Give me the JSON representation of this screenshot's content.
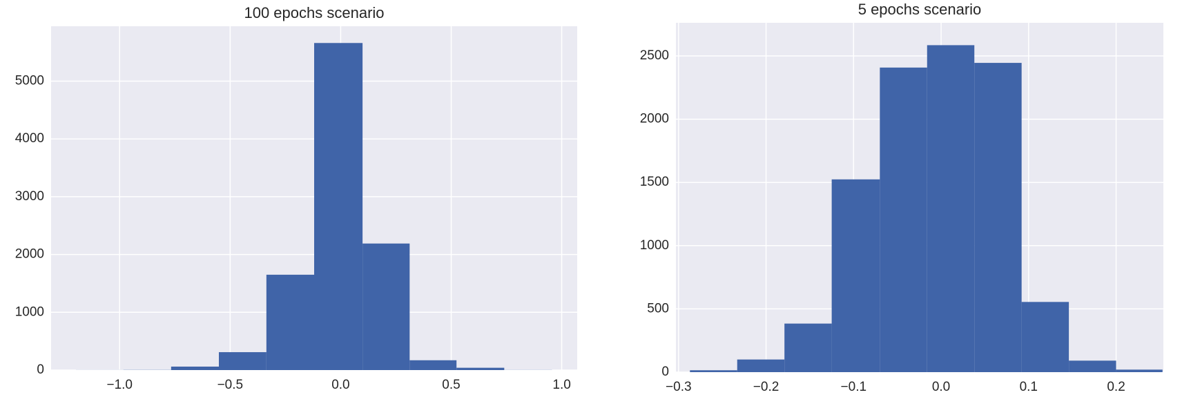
{
  "chart_data": [
    {
      "type": "histogram",
      "title": "100 epochs scenario",
      "color": "#4064a8",
      "grid": true,
      "bins": [
        -1.198,
        -0.983,
        -0.767,
        -0.551,
        -0.336,
        -0.12,
        0.099,
        0.312,
        0.524,
        0.74,
        0.956
      ],
      "values": [
        1,
        3,
        60,
        310,
        1650,
        5660,
        2190,
        170,
        40,
        2
      ],
      "xlim": [
        -1.31,
        1.07
      ],
      "ylim": [
        0,
        5950
      ],
      "xticks": [
        {
          "value": -1.0,
          "label": "−1.0"
        },
        {
          "value": -0.5,
          "label": "−0.5"
        },
        {
          "value": 0,
          "label": "0.0"
        },
        {
          "value": 0.5,
          "label": "0.5"
        },
        {
          "value": 1.0,
          "label": "1.0"
        }
      ],
      "yticks": [
        0,
        1000,
        2000,
        3000,
        4000,
        5000
      ]
    },
    {
      "type": "histogram",
      "title": "5 epochs scenario",
      "color": "#4064a8",
      "grid": true,
      "bins": [
        -0.287,
        -0.233,
        -0.179,
        -0.125,
        -0.07,
        -0.016,
        0.038,
        0.092,
        0.146,
        0.2,
        0.253
      ],
      "values": [
        15,
        100,
        384,
        1524,
        2408,
        2585,
        2445,
        555,
        91,
        20
      ],
      "xlim": [
        -0.303,
        0.254
      ],
      "ylim": [
        0,
        2762
      ],
      "xticks": [
        {
          "value": -0.3,
          "label": "−0.3"
        },
        {
          "value": -0.2,
          "label": "−0.2"
        },
        {
          "value": -0.1,
          "label": "−0.1"
        },
        {
          "value": 0,
          "label": "0.0"
        },
        {
          "value": 0.1,
          "label": "0.1"
        },
        {
          "value": 0.2,
          "label": "0.2"
        }
      ],
      "yticks": [
        0,
        500,
        1000,
        1500,
        2000,
        2500
      ]
    }
  ]
}
